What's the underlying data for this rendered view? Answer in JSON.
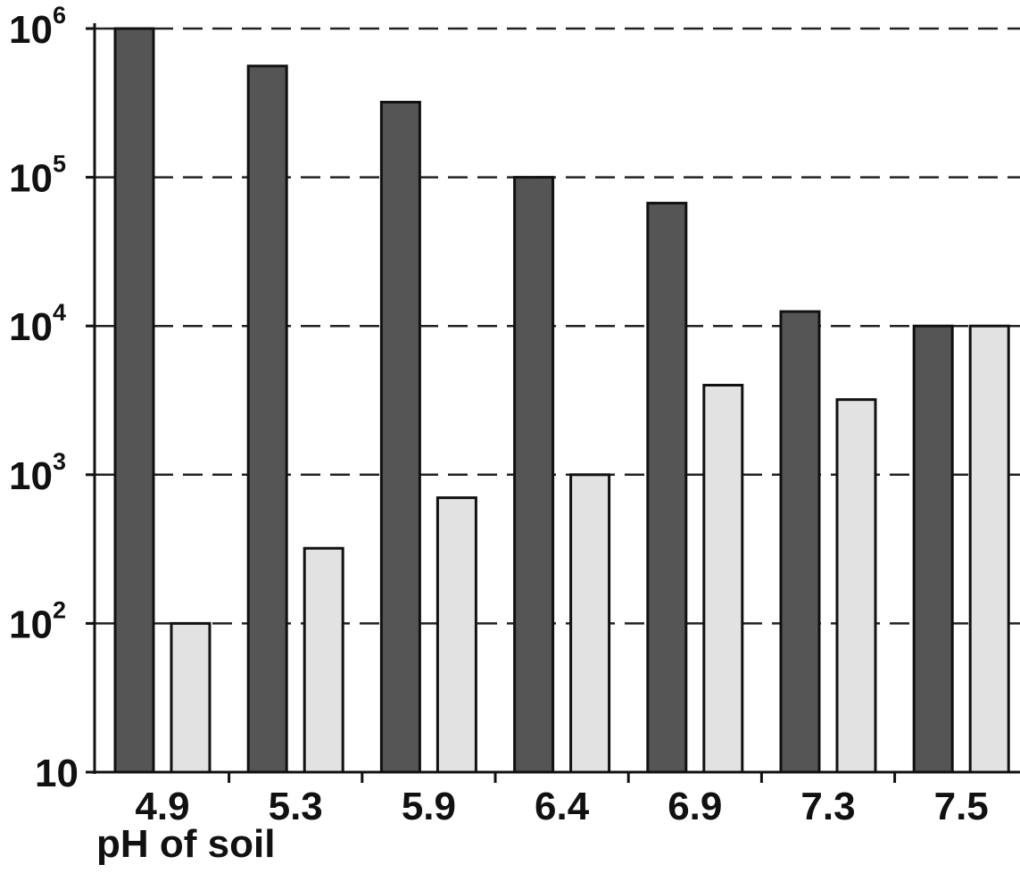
{
  "chart_data": {
    "type": "bar",
    "title": "",
    "xlabel": "pH of soil",
    "ylabel": "",
    "y_scale": "log",
    "ylim": [
      10,
      1000000
    ],
    "grid": "horizontal dashed",
    "categories": [
      "4.9",
      "5.3",
      "5.9",
      "6.4",
      "6.9",
      "7.3",
      "7.5"
    ],
    "series": [
      {
        "color": "#555555",
        "values": [
          1000000,
          560000,
          320000,
          100000,
          67000,
          12500,
          10000
        ]
      },
      {
        "color": "#e2e2e2",
        "values": [
          100,
          320,
          700,
          1000,
          4000,
          3200,
          10000
        ]
      }
    ],
    "y_ticks": [
      {
        "base": "10",
        "exp": ""
      },
      {
        "base": "10",
        "exp": "2"
      },
      {
        "base": "10",
        "exp": "3"
      },
      {
        "base": "10",
        "exp": "4"
      },
      {
        "base": "10",
        "exp": "5"
      },
      {
        "base": "10",
        "exp": "6"
      }
    ]
  }
}
